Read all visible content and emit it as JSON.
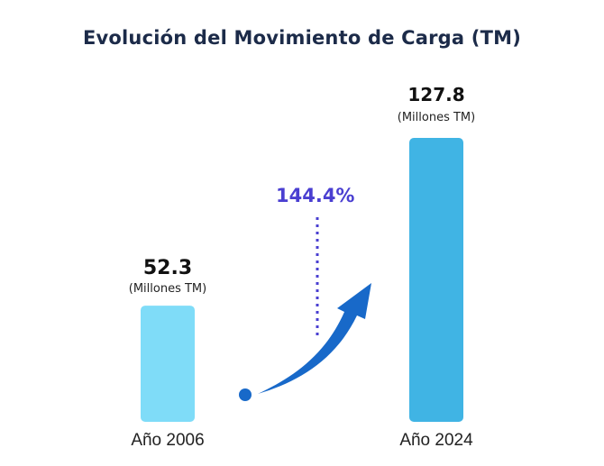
{
  "chart_data": {
    "type": "bar",
    "title": "Evolución del Movimiento de Carga (TM)",
    "categories": [
      "Año 2006",
      "Año 2024"
    ],
    "values": [
      52.3,
      127.8
    ],
    "value_labels": [
      "52.3",
      "127.8"
    ],
    "unit_label": "(Millones TM)",
    "growth_label": "144.4%",
    "bar_colors": [
      "#7fdcf8",
      "#40b4e4"
    ],
    "arrow_color": "#1869c9",
    "growth_color": "#4a3fd1",
    "grid": false,
    "legend": "none"
  }
}
